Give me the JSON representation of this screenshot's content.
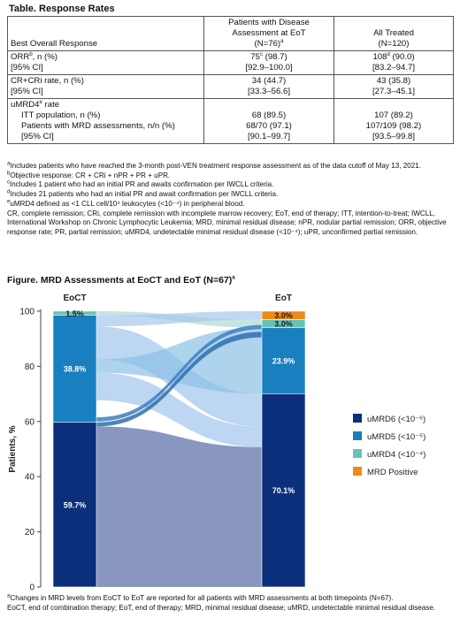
{
  "table": {
    "title": "Table. Response Rates",
    "headers": {
      "col1": "Best Overall Response",
      "col2_line1": "Patients with Disease",
      "col2_line2": "Assessment at EoT",
      "col2_line3": "(N=76)",
      "col2_sup": "a",
      "col3_line1": "All Treated",
      "col3_line2": "(N=120)"
    },
    "rows": {
      "orr_label": "ORR",
      "orr_sup": "b",
      "orr_suffix": ", n (%)",
      "orr_ci_label": "[95% CI]",
      "orr_eot": "75",
      "orr_eot_sup": "c",
      "orr_eot_pct": " (98.7)",
      "orr_eot_ci": "[92.9–100.0]",
      "orr_all": "108",
      "orr_all_sup": "d",
      "orr_all_pct": " (90.0)",
      "orr_all_ci": "[83.2–94.7]",
      "cr_label": "CR+CRi rate, n (%)",
      "cr_ci_label": "[95% CI]",
      "cr_eot": "34 (44.7)",
      "cr_eot_ci": "[33.3–56.6]",
      "cr_all": "43 (35.8)",
      "cr_all_ci": "[27.3–45.1]",
      "umrd_label": "uMRD4",
      "umrd_sup": "e",
      "umrd_suffix": " rate",
      "itt_label": "ITT population, n (%)",
      "itt_eot": "68 (89.5)",
      "itt_all": "107 (89.2)",
      "mrd_label": "Patients with MRD assessments, n/n (%)",
      "mrd_eot": "68/70 (97.1)",
      "mrd_all": "107/109 (98.2)",
      "umrd_ci_label": "[95% CI]",
      "umrd_eot_ci": "[90.1–99.7]",
      "umrd_all_ci": "[93.5–99.8]"
    },
    "footnotes": [
      {
        "sup": "a",
        "text": "Includes patients who have reached the 3-month post-VEN treatment response assessment as of the data cutoff of May 13, 2021."
      },
      {
        "sup": "b",
        "text": "Objective response: CR + CRi + nPR + PR + uPR."
      },
      {
        "sup": "c",
        "text": "Includes 1 patient who had an initial PR and awaits confirmation per IWCLL criteria."
      },
      {
        "sup": "d",
        "text": "Includes 21 patients who had an initial PR and await confirmation per IWCLL criteria."
      },
      {
        "sup": "e",
        "text": "uMRD4 defined as <1 CLL cell/10⁴ leukocytes (<10⁻⁴) in peripheral blood."
      }
    ],
    "abbreviations": "CR, complete remission; CRi, complete remission with incomplete marrow recovery; EoT, end of therapy; ITT, intention-to-treat; IWCLL, International Workshop on Chronic Lymphocytic Leukemia; MRD, minimal residual disease; nPR, nodular partial remission; ORR, objective response rate; PR, partial remission; uMRD4, undetectable minimal residual disease (<10⁻⁴); uPR, unconfirmed partial remission."
  },
  "figure": {
    "title": "Figure. MRD Assessments at EoCT and EoT (N=67)",
    "title_sup": "a",
    "footnote_sup": "a",
    "footnote": "Changes in MRD levels from EoCT to EoT are reported for all patients with MRD assessments at both timepoints (N=67).",
    "abbreviations": "EoCT, end of combination therapy; EoT, end of therapy; MRD, minimal residual disease; uMRD, undetectable minimal residual disease."
  },
  "chart_data": {
    "type": "bar",
    "subtype": "stacked-bar-with-flows",
    "categories": [
      "EoCT",
      "EoT"
    ],
    "ylabel": "Patients, %",
    "ylim": [
      0,
      100
    ],
    "yticks": [
      0,
      20,
      40,
      60,
      80,
      100
    ],
    "legend_position": "right",
    "series": [
      {
        "name": "uMRD6 (<10⁻⁶)",
        "color": "#0b2f7a",
        "values": [
          59.7,
          70.1
        ],
        "labels": [
          "59.7%",
          "70.1%"
        ]
      },
      {
        "name": "uMRD5 (<10⁻⁵)",
        "color": "#1a7fbf",
        "values": [
          38.8,
          23.9
        ],
        "labels": [
          "38.8%",
          "23.9%"
        ]
      },
      {
        "name": "uMRD4 (<10⁻⁴)",
        "color": "#67c2b8",
        "values": [
          1.5,
          3.0
        ],
        "labels": [
          "1.5%",
          "3.0%"
        ]
      },
      {
        "name": "MRD Positive",
        "color": "#ef8a1a",
        "values": [
          0,
          3.0
        ],
        "labels": [
          "",
          "3.0%"
        ]
      }
    ]
  }
}
